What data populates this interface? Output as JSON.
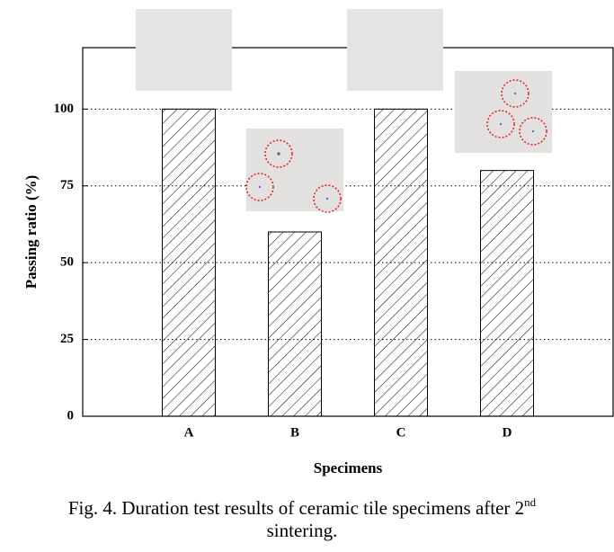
{
  "chart_data": {
    "type": "bar",
    "x_label": "Specimens",
    "y_label": "Passing ratio  (%)",
    "categories": [
      "A",
      "B",
      "C",
      "D"
    ],
    "values": [
      100,
      60,
      100,
      80
    ],
    "ylim": [
      0,
      120
    ],
    "yticks": [
      0,
      25,
      50,
      75,
      100
    ],
    "grid": true,
    "caption": [
      "Fig. 4. Duration test results of ceramic tile specimens after 2",
      "nd",
      "sintering."
    ]
  }
}
